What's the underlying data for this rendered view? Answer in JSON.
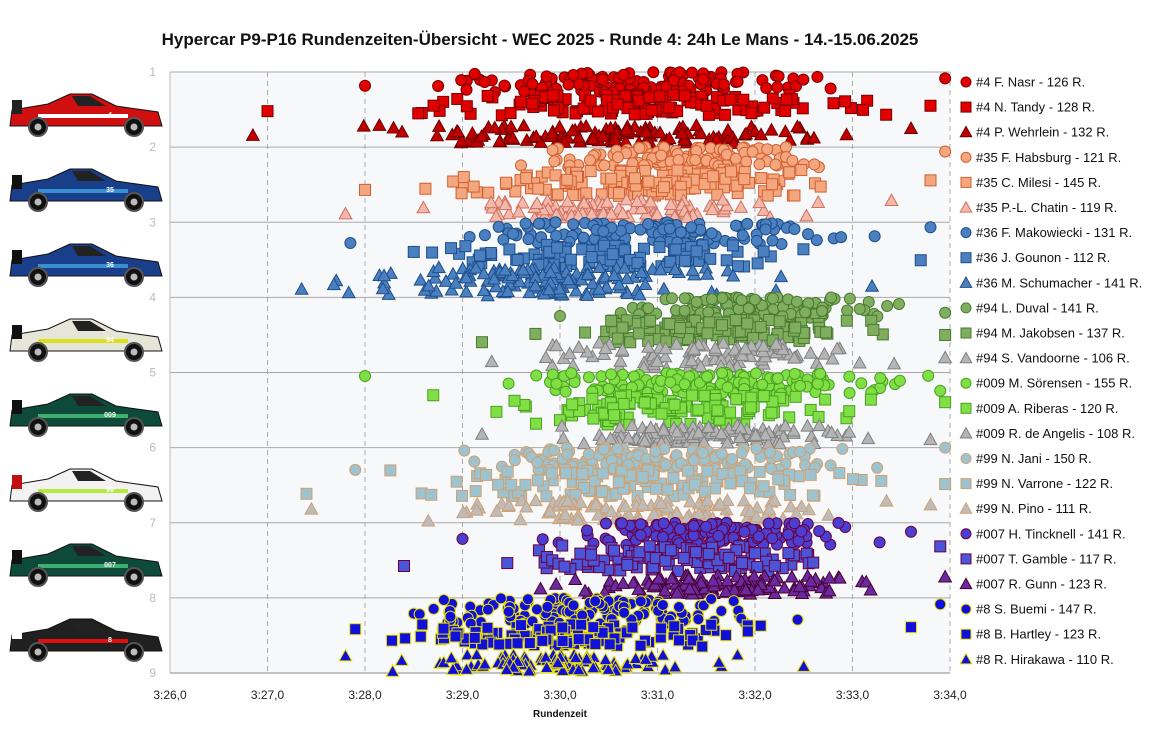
{
  "chart_data": {
    "type": "scatter",
    "title": "Hypercar P9-P16 Rundenzeiten-Übersicht - WEC 2025 - Runde 4: 24h Le Mans - 14.-15.06.2025",
    "xlabel": "Rundenzeit",
    "ylabel": "",
    "x_unit": "seconds",
    "xlim": [
      206.0,
      214.0
    ],
    "ylim": [
      1,
      9
    ],
    "y_inverted": true,
    "x_ticks": [
      206,
      207,
      208,
      209,
      210,
      211,
      212,
      213,
      214
    ],
    "x_tick_labels": [
      "3:26,0",
      "3:27,0",
      "3:28,0",
      "3:29,0",
      "3:30,0",
      "3:31,0",
      "3:32,0",
      "3:33,0",
      "3:34,0"
    ],
    "y_ticks": [
      1,
      2,
      3,
      4,
      5,
      6,
      7,
      8,
      9
    ],
    "y_tick_labels": [
      "1",
      "2",
      "3",
      "4",
      "5",
      "6",
      "7",
      "8",
      "9"
    ],
    "grid": "horizontal major lines, dashed vertical lines",
    "legend_position": "right",
    "note_points": "individual lap times per driver; y values are jittered inside each driver band",
    "series": [
      {
        "name": "#4 F. Nasr - 126 R.",
        "laps": 126,
        "marker": "circle",
        "color": "#e00000",
        "edge": "#7a0000",
        "y_band": [
          1.0,
          1.28
        ],
        "x_range": [
          208.0,
          213.95
        ],
        "x_center": 210.7
      },
      {
        "name": "#4 N. Tandy - 128 R.",
        "laps": 128,
        "marker": "square",
        "color": "#e00000",
        "edge": "#7a0000",
        "y_band": [
          1.3,
          1.58
        ],
        "x_range": [
          207.0,
          213.8
        ],
        "x_center": 210.8
      },
      {
        "name": "#4 P. Wehrlein - 132 R.",
        "laps": 132,
        "marker": "triangle",
        "color": "#c00000",
        "edge": "#6a0000",
        "y_band": [
          1.7,
          1.95
        ],
        "x_range": [
          206.85,
          213.6
        ],
        "x_center": 210.6
      },
      {
        "name": "#35 F. Habsburg - 121 R.",
        "laps": 121,
        "marker": "circle",
        "color": "#f4a77f",
        "edge": "#d06030",
        "y_band": [
          2.0,
          2.28
        ],
        "x_range": [
          209.6,
          213.95
        ],
        "x_center": 211.3
      },
      {
        "name": "#35 C. Milesi - 145 R.",
        "laps": 145,
        "marker": "square",
        "color": "#f4a77f",
        "edge": "#d06030",
        "y_band": [
          2.3,
          2.65
        ],
        "x_range": [
          208.0,
          213.8
        ],
        "x_center": 210.8
      },
      {
        "name": "#35 P.-L. Chatin - 119 R.",
        "laps": 119,
        "marker": "triangle",
        "color": "#f2b9aa",
        "edge": "#d07060",
        "y_band": [
          2.7,
          2.95
        ],
        "x_range": [
          207.8,
          213.4
        ],
        "x_center": 210.5
      },
      {
        "name": "#36 F. Makowiecki - 131 R.",
        "laps": 131,
        "marker": "circle",
        "color": "#4a7fc0",
        "edge": "#1f4f8a",
        "y_band": [
          3.0,
          3.3
        ],
        "x_range": [
          207.85,
          213.8
        ],
        "x_center": 210.9
      },
      {
        "name": "#36 J. Gounon - 112 R.",
        "laps": 112,
        "marker": "square",
        "color": "#4a7fc0",
        "edge": "#1f4f8a",
        "y_band": [
          3.3,
          3.6
        ],
        "x_range": [
          208.5,
          213.7
        ],
        "x_center": 210.6
      },
      {
        "name": "#36 M. Schumacher - 141 R.",
        "laps": 141,
        "marker": "triangle",
        "color": "#4a7fc0",
        "edge": "#1f4f8a",
        "y_band": [
          3.6,
          3.98
        ],
        "x_range": [
          207.35,
          213.2
        ],
        "x_center": 209.9
      },
      {
        "name": "#94 L. Duval - 141 R.",
        "laps": 141,
        "marker": "circle",
        "color": "#7fae5e",
        "edge": "#4a7a30",
        "y_band": [
          4.0,
          4.3
        ],
        "x_range": [
          210.0,
          213.95
        ],
        "x_center": 212.0
      },
      {
        "name": "#94 M. Jakobsen - 137 R.",
        "laps": 137,
        "marker": "square",
        "color": "#7fae5e",
        "edge": "#4a7a30",
        "y_band": [
          4.3,
          4.6
        ],
        "x_range": [
          209.2,
          213.95
        ],
        "x_center": 211.6
      },
      {
        "name": "#94 S. Vandoorne - 106 R.",
        "laps": 106,
        "marker": "triangle",
        "color": "#b4b4b4",
        "edge": "#808080",
        "y_band": [
          4.6,
          4.95
        ],
        "x_range": [
          209.3,
          213.95
        ],
        "x_center": 211.5
      },
      {
        "name": "#009 M. Sörensen - 155 R.",
        "laps": 155,
        "marker": "circle",
        "color": "#7fdf45",
        "edge": "#4aa020",
        "y_band": [
          5.0,
          5.3
        ],
        "x_range": [
          208.0,
          213.9
        ],
        "x_center": 211.6
      },
      {
        "name": "#009 A. Riberas - 120 R.",
        "laps": 120,
        "marker": "square",
        "color": "#7fdf45",
        "edge": "#4aa020",
        "y_band": [
          5.3,
          5.7
        ],
        "x_range": [
          208.7,
          213.95
        ],
        "x_center": 211.2
      },
      {
        "name": "#009 R. de Angelis - 108 R.",
        "laps": 108,
        "marker": "triangle",
        "color": "#b4b4b4",
        "edge": "#808080",
        "y_band": [
          5.7,
          5.95
        ],
        "x_range": [
          209.2,
          213.8
        ],
        "x_center": 211.5
      },
      {
        "name": "#99 N. Jani - 150 R.",
        "laps": 150,
        "marker": "circle",
        "color": "#9dc3d0",
        "edge": "#d0a070",
        "y_band": [
          6.0,
          6.3
        ],
        "x_range": [
          207.9,
          213.95
        ],
        "x_center": 211.0
      },
      {
        "name": "#99 N. Varrone - 122 R.",
        "laps": 122,
        "marker": "square",
        "color": "#9dc3d0",
        "edge": "#d0a070",
        "y_band": [
          6.3,
          6.65
        ],
        "x_range": [
          207.4,
          213.95
        ],
        "x_center": 210.9
      },
      {
        "name": "#99 N. Pino - 111 R.",
        "laps": 111,
        "marker": "triangle",
        "color": "#bcbcbc",
        "edge": "#d0a070",
        "y_band": [
          6.7,
          6.98
        ],
        "x_range": [
          207.45,
          213.8
        ],
        "x_center": 210.8
      },
      {
        "name": "#007 H. Tincknell - 141 R.",
        "laps": 141,
        "marker": "circle",
        "color": "#4a3fd0",
        "edge": "#6a0040",
        "y_band": [
          7.0,
          7.3
        ],
        "x_range": [
          209.0,
          213.6
        ],
        "x_center": 211.6
      },
      {
        "name": "#007 T. Gamble - 117 R.",
        "laps": 117,
        "marker": "square",
        "color": "#4a55d8",
        "edge": "#6a0040",
        "y_band": [
          7.3,
          7.65
        ],
        "x_range": [
          208.4,
          213.9
        ],
        "x_center": 211.3
      },
      {
        "name": "#007 R. Gunn - 123 R.",
        "laps": 123,
        "marker": "triangle",
        "color": "#6a2aa0",
        "edge": "#4a0030",
        "y_band": [
          7.7,
          7.95
        ],
        "x_range": [
          209.8,
          213.95
        ],
        "x_center": 211.7
      },
      {
        "name": "#8 S. Buemi - 147 R.",
        "laps": 147,
        "marker": "circle",
        "color": "#1010d8",
        "edge": "#e8e000",
        "y_band": [
          8.0,
          8.35
        ],
        "x_range": [
          208.5,
          213.9
        ],
        "x_center": 210.3
      },
      {
        "name": "#8 B. Hartley - 123 R.",
        "laps": 123,
        "marker": "square",
        "color": "#1010d8",
        "edge": "#e8e000",
        "y_band": [
          8.35,
          8.65
        ],
        "x_range": [
          207.9,
          213.6
        ],
        "x_center": 210.2
      },
      {
        "name": "#8 R. Hirakawa - 110 R.",
        "laps": 110,
        "marker": "triangle",
        "color": "#1010d8",
        "edge": "#e8e000",
        "y_band": [
          8.75,
          8.98
        ],
        "x_range": [
          207.8,
          212.5
        ],
        "x_center": 210.0
      }
    ],
    "car_images": [
      {
        "label": "4",
        "body": "#d01010",
        "accent": "#ffffff",
        "stripe": "#222222"
      },
      {
        "label": "35",
        "body": "#1a3f8a",
        "accent": "#3a8fd0",
        "stripe": "#111111"
      },
      {
        "label": "36",
        "body": "#1a3f8a",
        "accent": "#3a8fd0",
        "stripe": "#111111"
      },
      {
        "label": "94",
        "body": "#e6e6d8",
        "accent": "#d8e020",
        "stripe": "#111111"
      },
      {
        "label": "009",
        "body": "#0d4a3a",
        "accent": "#40b070",
        "stripe": "#111111"
      },
      {
        "label": "99",
        "body": "#f2f2f2",
        "accent": "#b8e840",
        "stripe": "#c01010"
      },
      {
        "label": "007",
        "body": "#0d4a3a",
        "accent": "#40b070",
        "stripe": "#111111"
      },
      {
        "label": "8",
        "body": "#202020",
        "accent": "#e01010",
        "stripe": "#ffffff"
      }
    ]
  }
}
